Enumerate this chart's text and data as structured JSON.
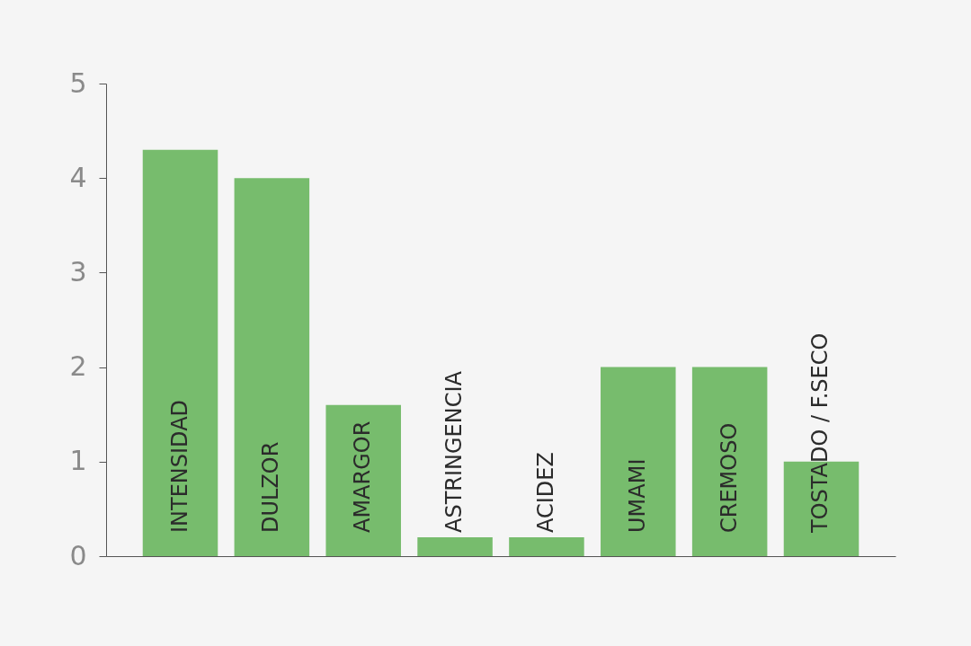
{
  "chart_data": {
    "type": "bar",
    "categories": [
      "INTENSIDAD",
      "DULZOR",
      "AMARGOR",
      "ASTRINGENCIA",
      "ACIDEZ",
      "UMAMI",
      "CREMOSO",
      "TOSTADO / F.SECO"
    ],
    "values": [
      4.3,
      4.0,
      1.6,
      0.2,
      0.2,
      2.0,
      2.0,
      1.0
    ],
    "color": "#77bc6d",
    "ylim": [
      0,
      5
    ],
    "yticks": [
      0,
      1,
      2,
      3,
      4,
      5
    ],
    "grid": false
  }
}
